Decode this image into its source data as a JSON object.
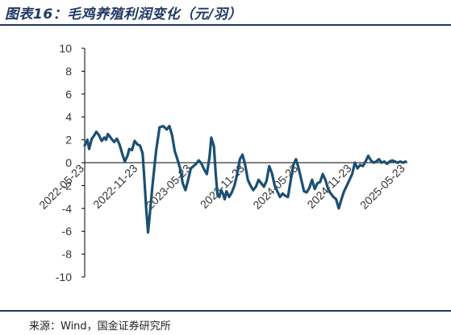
{
  "header": {
    "title": "图表16：毛鸡养殖利润变化（元/羽）"
  },
  "footer": {
    "source": "来源：Wind，国金证券研究所"
  },
  "colors": {
    "line": "#1b4f72",
    "axis": "#000000",
    "rule": "#1f3864"
  },
  "chart_data": {
    "type": "line",
    "title": "图表16：毛鸡养殖利润变化（元/羽）",
    "xlabel": "",
    "ylabel": "",
    "ylim": [
      -10,
      10
    ],
    "y_ticks": [
      "10",
      "8",
      "6",
      "4",
      "2",
      "0",
      "-2",
      "-4",
      "-6",
      "-8",
      "-10"
    ],
    "x_ticks": [
      "2022-05-23",
      "2022-11-23",
      "2023-05-23",
      "2023-11-23",
      "2024-05-23",
      "2024-11-23",
      "2025-05-23"
    ],
    "x_tick_positions": [
      0,
      6,
      12,
      18,
      24,
      30,
      36
    ],
    "x_range": [
      0,
      36.2
    ],
    "grid": false,
    "legend": "none",
    "series": [
      {
        "x": [
          0,
          0.3,
          0.5,
          0.8,
          1.0,
          1.3,
          1.6,
          1.9,
          2.2,
          2.4,
          2.6,
          2.8,
          3.0,
          3.3,
          3.6,
          3.9,
          4.2,
          4.5,
          4.8,
          5.0,
          5.3,
          5.6,
          5.9,
          6.2,
          6.5,
          6.7,
          6.9,
          7.1,
          7.3,
          7.6,
          8.0,
          8.4,
          8.8,
          9.2,
          9.5,
          9.8,
          10.1,
          10.4,
          10.7,
          11.0,
          11.3,
          11.6,
          11.9,
          12.2,
          12.5,
          12.8,
          13.1,
          13.4,
          13.7,
          14.0,
          14.2,
          14.5,
          14.7,
          14.9,
          15.1,
          15.3,
          15.5,
          15.7,
          15.9,
          16.2,
          16.5,
          16.8,
          17.1,
          17.4,
          17.7,
          18.0,
          18.3,
          18.6,
          18.9,
          19.2,
          19.5,
          19.8,
          20.1,
          20.4,
          20.7,
          21.0,
          21.3,
          21.6,
          21.9,
          22.2,
          22.5,
          22.8,
          23.1,
          23.4,
          23.7,
          24.0,
          24.3,
          24.6,
          24.9,
          25.2,
          25.5,
          25.8,
          26.1,
          26.4,
          26.7,
          27.0,
          27.3,
          27.6,
          27.9,
          28.2,
          28.5,
          28.8,
          29.1,
          29.4,
          29.7,
          30.0,
          30.3,
          30.6,
          30.9,
          31.2,
          31.5,
          31.8,
          32.1,
          32.4,
          32.7,
          33.0,
          33.3,
          33.6,
          33.9,
          34.2,
          34.5,
          34.8,
          35.1,
          35.4,
          35.7,
          36.0
        ],
        "values": [
          1.5,
          2.0,
          1.2,
          2.1,
          2.3,
          2.7,
          2.4,
          1.9,
          2.2,
          2.0,
          2.5,
          2.3,
          2.1,
          1.8,
          2.1,
          1.6,
          0.8,
          0.1,
          0.6,
          1.2,
          1.1,
          1.9,
          1.6,
          1.5,
          0.8,
          -1.5,
          -4.0,
          -6.1,
          -4.5,
          -2.0,
          1.0,
          3.1,
          3.2,
          2.9,
          3.2,
          2.4,
          1.0,
          0.3,
          -0.5,
          -1.8,
          -2.4,
          -1.5,
          -0.5,
          -0.3,
          -0.1,
          0.2,
          -0.1,
          -0.6,
          -1.0,
          0.5,
          2.2,
          1.4,
          -1.0,
          -2.8,
          -3.0,
          -2.4,
          -2.7,
          -3.2,
          -2.5,
          -3.0,
          -2.6,
          -2.0,
          -1.0,
          0.3,
          0.7,
          -0.2,
          -1.5,
          -2.0,
          -2.4,
          -2.1,
          -1.5,
          -1.8,
          -2.1,
          -1.6,
          -0.3,
          -0.9,
          -2.0,
          -2.5,
          -3.0,
          -2.7,
          -2.9,
          -3.0,
          -1.6,
          -0.2,
          0.3,
          -0.5,
          -1.5,
          -2.5,
          -2.6,
          -2.2,
          -1.5,
          -2.3,
          -1.8,
          -1.7,
          -1.0,
          -1.5,
          -2.3,
          -2.7,
          -3.0,
          -3.2,
          -4.0,
          -3.2,
          -2.5,
          -2.0,
          -1.5,
          -1.0,
          0.0,
          -0.5,
          -0.2,
          -0.3,
          0.1,
          0.6,
          0.2,
          0.0,
          0.1,
          0.3,
          0.0,
          0.1,
          -0.1,
          0.1,
          0.2,
          0.1,
          0.0,
          0.1,
          0.0,
          0.1
        ]
      }
    ]
  }
}
